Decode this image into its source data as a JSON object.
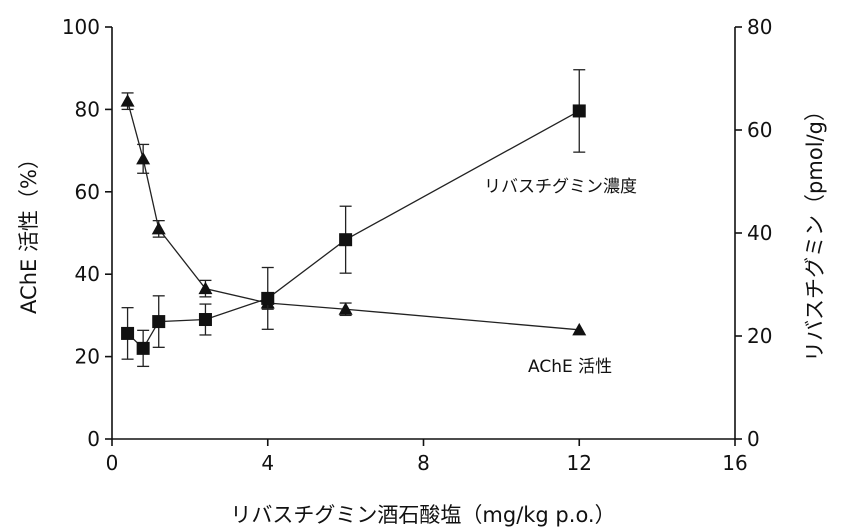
{
  "chart_data": {
    "type": "line",
    "xlabel": "リバスチグミン酒石酸塩（mg/kg p.o.）",
    "ylabel_left": "AChE 活性（%）",
    "ylabel_right": "リバスチグミン（pmol/g）",
    "xlim": [
      0,
      16
    ],
    "ylim_left": [
      0,
      100
    ],
    "ylim_right": [
      0,
      80
    ],
    "x_ticks": [
      "0",
      "4",
      "8",
      "12",
      "16"
    ],
    "y_left_ticks": [
      "0",
      "20",
      "40",
      "60",
      "80",
      "100"
    ],
    "y_right_ticks": [
      "0",
      "20",
      "40",
      "60",
      "80"
    ],
    "grid": false,
    "series": [
      {
        "name": "AChE 活性",
        "axis": "left",
        "marker": "triangle",
        "x": [
          0.4,
          0.8,
          1.2,
          2.4,
          4,
          6,
          12
        ],
        "y": [
          82,
          68,
          51,
          36.5,
          33,
          31.5,
          26.5
        ],
        "yerr": [
          2,
          3.5,
          2,
          2,
          1.5,
          1.5,
          0
        ]
      },
      {
        "name": "リバスチグミン濃度",
        "axis": "right",
        "marker": "square",
        "x": [
          0.4,
          0.8,
          1.2,
          2.4,
          4,
          6,
          12
        ],
        "y": [
          20.5,
          17.6,
          22.8,
          23.2,
          27.3,
          38.7,
          63.7
        ],
        "yerr": [
          5,
          3.5,
          5,
          3,
          6,
          6.5,
          8
        ]
      }
    ]
  }
}
